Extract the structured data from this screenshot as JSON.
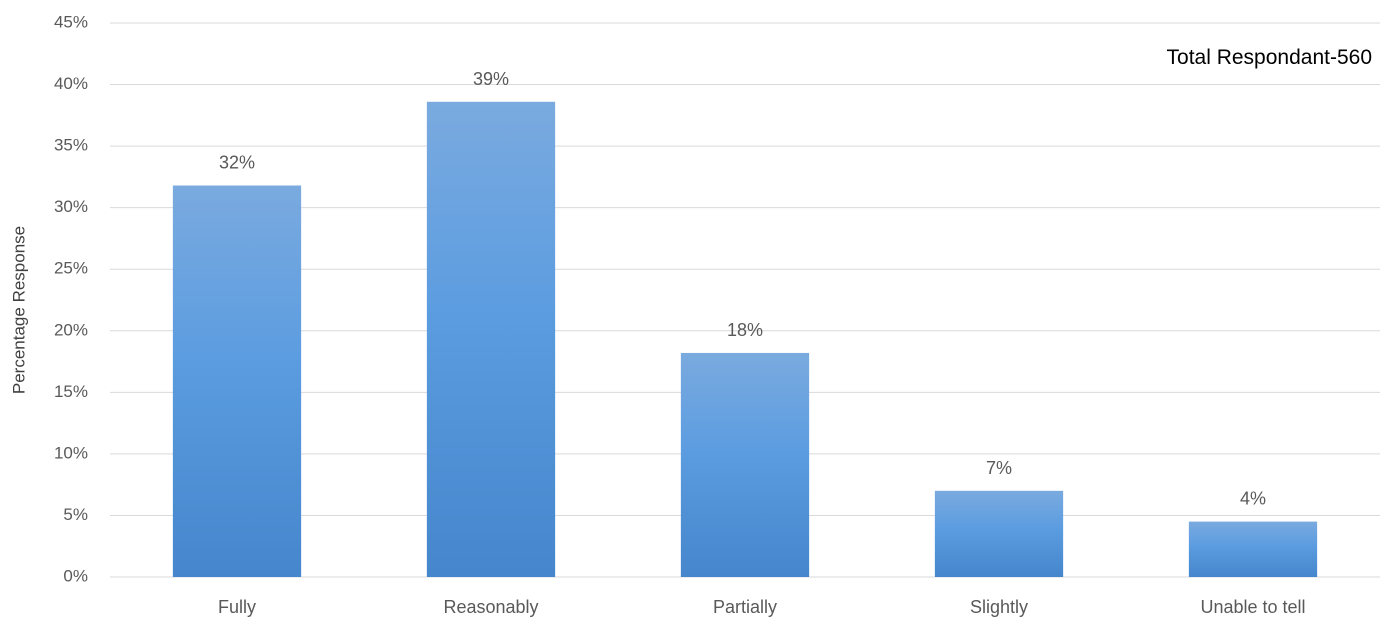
{
  "chart_data": {
    "type": "bar",
    "title": "",
    "xlabel": "",
    "ylabel": "Percentage Response",
    "categories": [
      "Fully",
      "Reasonably",
      "Partially",
      "Slightly",
      "Unable to tell"
    ],
    "values": [
      31.8,
      38.6,
      18.2,
      7.0,
      4.5
    ],
    "data_labels": [
      "32%",
      "39%",
      "18%",
      "7%",
      "4%"
    ],
    "ylim": [
      0,
      45
    ],
    "yticks": [
      0,
      5,
      10,
      15,
      20,
      25,
      30,
      35,
      40,
      45
    ],
    "ytick_labels": [
      "0%",
      "5%",
      "10%",
      "15%",
      "20%",
      "25%",
      "30%",
      "35%",
      "40%",
      "45%"
    ],
    "annotation": "Total Respondant-560",
    "grid": true,
    "legend": "none",
    "colors": {
      "bar_top": "#7aaadf",
      "bar_bottom": "#4586cc",
      "grid": "#d9d9d9",
      "text": "#595959"
    }
  }
}
